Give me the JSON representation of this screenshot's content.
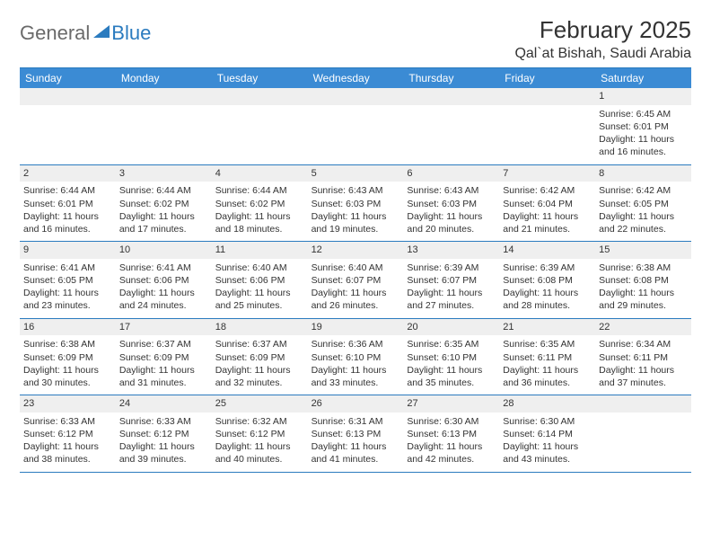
{
  "brand": {
    "part1": "General",
    "part2": "Blue"
  },
  "title": "February 2025",
  "location": "Qal`at Bishah, Saudi Arabia",
  "colors": {
    "header_bg": "#3b8bd4",
    "rule": "#2b7bbf",
    "daynum_bg": "#efefef",
    "text": "#333333",
    "logo_gray": "#6a6a6a",
    "logo_blue": "#2b7bbf",
    "page_bg": "#ffffff"
  },
  "weekdays": [
    "Sunday",
    "Monday",
    "Tuesday",
    "Wednesday",
    "Thursday",
    "Friday",
    "Saturday"
  ],
  "weeks": [
    [
      null,
      null,
      null,
      null,
      null,
      null,
      {
        "d": "1",
        "sunrise": "6:45 AM",
        "sunset": "6:01 PM",
        "daylight": "11 hours and 16 minutes."
      }
    ],
    [
      {
        "d": "2",
        "sunrise": "6:44 AM",
        "sunset": "6:01 PM",
        "daylight": "11 hours and 16 minutes."
      },
      {
        "d": "3",
        "sunrise": "6:44 AM",
        "sunset": "6:02 PM",
        "daylight": "11 hours and 17 minutes."
      },
      {
        "d": "4",
        "sunrise": "6:44 AM",
        "sunset": "6:02 PM",
        "daylight": "11 hours and 18 minutes."
      },
      {
        "d": "5",
        "sunrise": "6:43 AM",
        "sunset": "6:03 PM",
        "daylight": "11 hours and 19 minutes."
      },
      {
        "d": "6",
        "sunrise": "6:43 AM",
        "sunset": "6:03 PM",
        "daylight": "11 hours and 20 minutes."
      },
      {
        "d": "7",
        "sunrise": "6:42 AM",
        "sunset": "6:04 PM",
        "daylight": "11 hours and 21 minutes."
      },
      {
        "d": "8",
        "sunrise": "6:42 AM",
        "sunset": "6:05 PM",
        "daylight": "11 hours and 22 minutes."
      }
    ],
    [
      {
        "d": "9",
        "sunrise": "6:41 AM",
        "sunset": "6:05 PM",
        "daylight": "11 hours and 23 minutes."
      },
      {
        "d": "10",
        "sunrise": "6:41 AM",
        "sunset": "6:06 PM",
        "daylight": "11 hours and 24 minutes."
      },
      {
        "d": "11",
        "sunrise": "6:40 AM",
        "sunset": "6:06 PM",
        "daylight": "11 hours and 25 minutes."
      },
      {
        "d": "12",
        "sunrise": "6:40 AM",
        "sunset": "6:07 PM",
        "daylight": "11 hours and 26 minutes."
      },
      {
        "d": "13",
        "sunrise": "6:39 AM",
        "sunset": "6:07 PM",
        "daylight": "11 hours and 27 minutes."
      },
      {
        "d": "14",
        "sunrise": "6:39 AM",
        "sunset": "6:08 PM",
        "daylight": "11 hours and 28 minutes."
      },
      {
        "d": "15",
        "sunrise": "6:38 AM",
        "sunset": "6:08 PM",
        "daylight": "11 hours and 29 minutes."
      }
    ],
    [
      {
        "d": "16",
        "sunrise": "6:38 AM",
        "sunset": "6:09 PM",
        "daylight": "11 hours and 30 minutes."
      },
      {
        "d": "17",
        "sunrise": "6:37 AM",
        "sunset": "6:09 PM",
        "daylight": "11 hours and 31 minutes."
      },
      {
        "d": "18",
        "sunrise": "6:37 AM",
        "sunset": "6:09 PM",
        "daylight": "11 hours and 32 minutes."
      },
      {
        "d": "19",
        "sunrise": "6:36 AM",
        "sunset": "6:10 PM",
        "daylight": "11 hours and 33 minutes."
      },
      {
        "d": "20",
        "sunrise": "6:35 AM",
        "sunset": "6:10 PM",
        "daylight": "11 hours and 35 minutes."
      },
      {
        "d": "21",
        "sunrise": "6:35 AM",
        "sunset": "6:11 PM",
        "daylight": "11 hours and 36 minutes."
      },
      {
        "d": "22",
        "sunrise": "6:34 AM",
        "sunset": "6:11 PM",
        "daylight": "11 hours and 37 minutes."
      }
    ],
    [
      {
        "d": "23",
        "sunrise": "6:33 AM",
        "sunset": "6:12 PM",
        "daylight": "11 hours and 38 minutes."
      },
      {
        "d": "24",
        "sunrise": "6:33 AM",
        "sunset": "6:12 PM",
        "daylight": "11 hours and 39 minutes."
      },
      {
        "d": "25",
        "sunrise": "6:32 AM",
        "sunset": "6:12 PM",
        "daylight": "11 hours and 40 minutes."
      },
      {
        "d": "26",
        "sunrise": "6:31 AM",
        "sunset": "6:13 PM",
        "daylight": "11 hours and 41 minutes."
      },
      {
        "d": "27",
        "sunrise": "6:30 AM",
        "sunset": "6:13 PM",
        "daylight": "11 hours and 42 minutes."
      },
      {
        "d": "28",
        "sunrise": "6:30 AM",
        "sunset": "6:14 PM",
        "daylight": "11 hours and 43 minutes."
      },
      null
    ]
  ],
  "labels": {
    "sunrise": "Sunrise:",
    "sunset": "Sunset:",
    "daylight": "Daylight:"
  }
}
